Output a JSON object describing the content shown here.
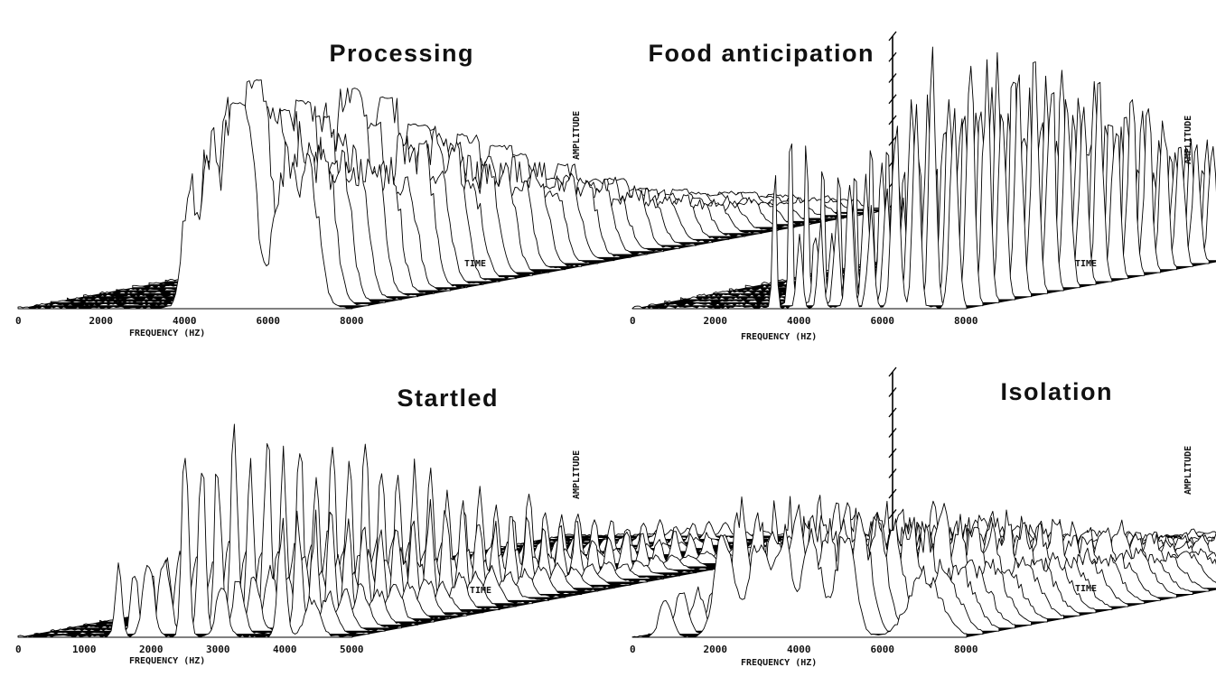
{
  "chart_data": [
    {
      "type": "waterfall-3d",
      "title": "Processing",
      "xlabel": "FREQUENCY (HZ)",
      "ylabel": "TIME",
      "zlabel": "AMPLITUDE",
      "xticks": [
        "0",
        "2000",
        "4000",
        "6000",
        "8000"
      ],
      "xlim": [
        0,
        8000
      ],
      "peaks": [
        {
          "freq": 4100,
          "amp": 0.62,
          "width": 220
        },
        {
          "freq": 4600,
          "amp": 0.78,
          "width": 260
        },
        {
          "freq": 5100,
          "amp": 0.98,
          "width": 250
        },
        {
          "freq": 5500,
          "amp": 0.9,
          "width": 260
        },
        {
          "freq": 6400,
          "amp": 0.72,
          "width": 380
        },
        {
          "freq": 7000,
          "amp": 0.62,
          "width": 300
        }
      ]
    },
    {
      "type": "waterfall-3d",
      "title": "Food anticipation",
      "xlabel": "FREQUENCY (HZ)",
      "ylabel": "TIME",
      "zlabel": "AMPLITUDE",
      "xticks": [
        "0",
        "2000",
        "4000",
        "6000",
        "8000"
      ],
      "xlim": [
        0,
        8000
      ],
      "peaks": [
        {
          "freq": 3400,
          "amp": 0.68,
          "width": 60
        },
        {
          "freq": 4000,
          "amp": 0.3,
          "width": 90
        },
        {
          "freq": 4500,
          "amp": 0.35,
          "width": 90
        },
        {
          "freq": 5200,
          "amp": 0.55,
          "width": 110
        },
        {
          "freq": 5700,
          "amp": 0.4,
          "width": 110
        },
        {
          "freq": 6300,
          "amp": 0.78,
          "width": 130
        },
        {
          "freq": 6800,
          "amp": 0.98,
          "width": 110
        },
        {
          "freq": 7700,
          "amp": 0.92,
          "width": 130
        }
      ]
    },
    {
      "type": "waterfall-3d",
      "title": "Startled",
      "xlabel": "FREQUENCY (HZ)",
      "ylabel": "TIME",
      "zlabel": "AMPLITUDE",
      "xticks": [
        "0",
        "1000",
        "2000",
        "3000",
        "4000",
        "5000"
      ],
      "xlim": [
        0,
        5000
      ],
      "peaks": [
        {
          "freq": 1500,
          "amp": 0.35,
          "width": 70
        },
        {
          "freq": 1950,
          "amp": 0.42,
          "width": 110
        },
        {
          "freq": 2500,
          "amp": 0.98,
          "width": 70
        },
        {
          "freq": 3050,
          "amp": 0.3,
          "width": 110
        },
        {
          "freq": 3950,
          "amp": 0.58,
          "width": 80
        },
        {
          "freq": 4400,
          "amp": 0.2,
          "width": 150
        }
      ]
    },
    {
      "type": "waterfall-3d",
      "title": "Isolation",
      "xlabel": "FREQUENCY (HZ)",
      "ylabel": "TIME",
      "zlabel": "AMPLITUDE",
      "xticks": [
        "0",
        "2000",
        "4000",
        "6000",
        "8000"
      ],
      "xlim": [
        0,
        8000
      ],
      "peaks": [
        {
          "freq": 800,
          "amp": 0.28,
          "width": 200
        },
        {
          "freq": 2200,
          "amp": 0.82,
          "width": 300
        },
        {
          "freq": 3000,
          "amp": 0.68,
          "width": 300
        },
        {
          "freq": 3600,
          "amp": 0.75,
          "width": 300
        },
        {
          "freq": 4300,
          "amp": 0.72,
          "width": 300
        },
        {
          "freq": 5100,
          "amp": 0.74,
          "width": 320
        },
        {
          "freq": 7000,
          "amp": 0.45,
          "width": 550
        }
      ]
    }
  ]
}
